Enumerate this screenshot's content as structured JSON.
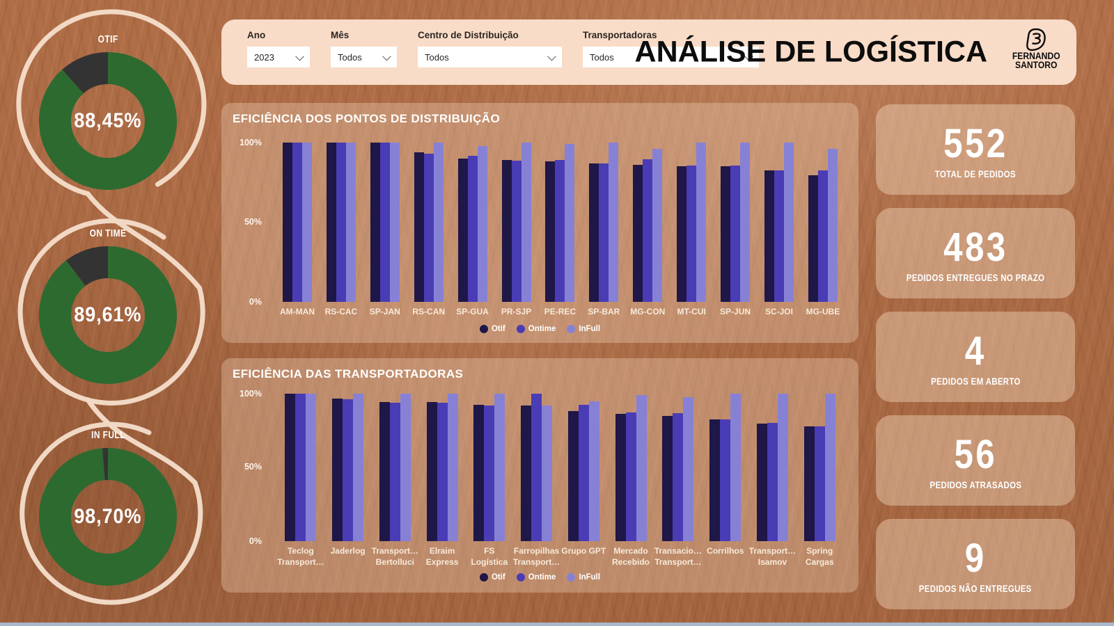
{
  "header": {
    "title": "ANÁLISE DE LOGÍSTICA",
    "logo_line1": "FERNANDO",
    "logo_line2": "SANTORO"
  },
  "filter_bar": {
    "items": [
      {
        "label": "Ano",
        "value": "2023"
      },
      {
        "label": "Mês",
        "value": "Todos"
      },
      {
        "label": "Centro de Distribuição",
        "value": "Todos"
      },
      {
        "label": "Transportadoras",
        "value": "Todos"
      }
    ]
  },
  "colors": {
    "otif_series": "#1e1747",
    "ontime_series": "#4a3cb4",
    "infull_series": "#8781d6",
    "donut_main": "#2d6a30",
    "donut_rest": "#333333",
    "filter_panel": "#f8dcc8"
  },
  "chart_data": [
    {
      "type": "pie",
      "title": "OTIF",
      "values": [
        88.45,
        11.55
      ],
      "display_value": "88,45%",
      "colors": [
        "#2d6a30",
        "#333333"
      ]
    },
    {
      "type": "pie",
      "title": "ON TIME",
      "values": [
        89.61,
        10.39
      ],
      "display_value": "89,61%",
      "colors": [
        "#2d6a30",
        "#333333"
      ]
    },
    {
      "type": "pie",
      "title": "IN FULL",
      "values": [
        98.7,
        1.3
      ],
      "display_value": "98,70%",
      "colors": [
        "#2d6a30",
        "#333333"
      ]
    },
    {
      "type": "bar",
      "title": "EFICIÊNCIA DOS PONTOS DE DISTRIBUIÇÃO",
      "ylim": [
        0,
        100
      ],
      "grid": false,
      "legend_position": "bottom",
      "y_ticks": [
        "100%",
        "50%",
        "0%"
      ],
      "categories": [
        "AM-MAN",
        "RS-CAC",
        "SP-JAN",
        "RS-CAN",
        "SP-GUA",
        "PR-SJP",
        "PE-REC",
        "SP-BAR",
        "MG-CON",
        "MT-CUI",
        "SP-JUN",
        "SC-JOI",
        "MG-UBE"
      ],
      "series": [
        {
          "name": "Otif",
          "color": "#1e1747",
          "values": [
            100,
            100,
            100,
            94,
            90,
            89,
            88,
            87,
            86,
            85,
            85,
            82.5,
            79.5
          ]
        },
        {
          "name": "Ontime",
          "color": "#4a3cb4",
          "values": [
            100,
            100,
            100,
            93,
            91.5,
            88.5,
            89,
            87,
            89.5,
            85.5,
            85.5,
            82.5,
            82.5
          ]
        },
        {
          "name": "InFull",
          "color": "#8781d6",
          "values": [
            100,
            100,
            100,
            100,
            98,
            100,
            99,
            100,
            96,
            100,
            100,
            100,
            96
          ]
        }
      ]
    },
    {
      "type": "bar",
      "title": "EFICIÊNCIA DAS TRANSPORTADORAS",
      "ylim": [
        0,
        100
      ],
      "grid": false,
      "legend_position": "bottom",
      "y_ticks": [
        "100%",
        "50%",
        "0%"
      ],
      "categories": [
        [
          "Teclog",
          "Transport…"
        ],
        [
          "Jaderlog",
          ""
        ],
        [
          "Transport…",
          "Bertolluci"
        ],
        [
          "Elraim",
          "Express"
        ],
        [
          "FS",
          "Logística"
        ],
        [
          "Farropilhas",
          "Transport…"
        ],
        [
          "Grupo GPT",
          ""
        ],
        [
          "Mercado",
          "Recebido"
        ],
        [
          "Transacio…",
          "Transport…"
        ],
        [
          "Corrilhos",
          ""
        ],
        [
          "Transport…",
          "Isamov"
        ],
        [
          "Spring",
          "Cargas"
        ]
      ],
      "series": [
        {
          "name": "Otif",
          "color": "#1e1747",
          "values": [
            100,
            96.5,
            94.5,
            94.5,
            92.5,
            92,
            88,
            86.5,
            85,
            82.5,
            79.5,
            78
          ]
        },
        {
          "name": "Ontime",
          "color": "#4a3cb4",
          "values": [
            100,
            96,
            94,
            94,
            92,
            100,
            92.5,
            87.5,
            87,
            82.5,
            80,
            78
          ]
        },
        {
          "name": "InFull",
          "color": "#8781d6",
          "values": [
            100,
            100,
            100,
            100,
            100,
            92,
            95,
            99,
            97.5,
            100,
            100,
            100
          ]
        }
      ]
    }
  ],
  "kpis": [
    {
      "value": "552",
      "label": "TOTAL DE PEDIDOS"
    },
    {
      "value": "483",
      "label": "PEDIDOS ENTREGUES NO PRAZO"
    },
    {
      "value": "4",
      "label": "PEDIDOS EM ABERTO"
    },
    {
      "value": "56",
      "label": "PEDIDOS ATRASADOS"
    },
    {
      "value": "9",
      "label": "PEDIDOS NÃO ENTREGUES"
    }
  ]
}
